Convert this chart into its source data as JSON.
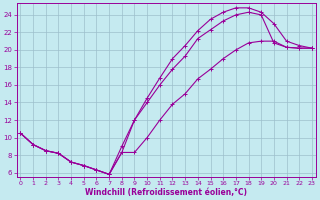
{
  "xlabel": "Windchill (Refroidissement éolien,°C)",
  "bg_color": "#c5eaf0",
  "line_color": "#990099",
  "grid_color": "#9dbfcc",
  "xlim": [
    -0.3,
    23.3
  ],
  "ylim": [
    5.5,
    25.3
  ],
  "xticks": [
    0,
    1,
    2,
    3,
    4,
    5,
    6,
    7,
    8,
    9,
    10,
    11,
    12,
    13,
    14,
    15,
    16,
    17,
    18,
    19,
    20,
    21,
    22,
    23
  ],
  "yticks": [
    6,
    8,
    10,
    12,
    14,
    16,
    18,
    20,
    22,
    24
  ],
  "curve_upper_x": [
    0,
    1,
    2,
    3,
    4,
    5,
    6,
    7,
    8,
    9,
    10,
    11,
    12,
    13,
    14,
    15,
    16,
    17,
    18,
    19,
    20,
    21,
    22,
    23
  ],
  "curve_upper_y": [
    10.5,
    9.2,
    8.5,
    8.2,
    7.2,
    6.8,
    6.3,
    5.8,
    9.0,
    12.0,
    14.5,
    16.8,
    19.0,
    20.5,
    22.2,
    23.5,
    24.3,
    24.8,
    24.8,
    24.3,
    23.0,
    21.0,
    20.5,
    20.2
  ],
  "curve_lower_x": [
    0,
    1,
    2,
    3,
    4,
    5,
    6,
    7,
    8,
    9,
    10,
    11,
    12,
    13,
    14,
    15,
    16,
    17,
    18,
    19,
    20,
    21,
    22,
    23
  ],
  "curve_lower_y": [
    10.5,
    9.2,
    8.5,
    8.2,
    7.2,
    6.8,
    6.3,
    5.8,
    8.3,
    12.0,
    14.0,
    16.0,
    17.8,
    19.3,
    21.3,
    22.3,
    23.3,
    24.0,
    24.3,
    24.0,
    20.8,
    20.3,
    20.2,
    20.2
  ],
  "curve_diag_x": [
    0,
    1,
    2,
    3,
    4,
    5,
    6,
    7,
    8,
    9,
    10,
    11,
    12,
    13,
    14,
    15,
    16,
    17,
    18,
    19,
    20,
    21,
    22,
    23
  ],
  "curve_diag_y": [
    10.5,
    9.2,
    8.5,
    8.2,
    7.2,
    6.8,
    6.3,
    5.8,
    8.3,
    8.3,
    10.0,
    12.0,
    13.8,
    15.0,
    16.7,
    17.8,
    19.0,
    20.0,
    20.8,
    21.0,
    21.0,
    20.3,
    20.2,
    20.2
  ]
}
